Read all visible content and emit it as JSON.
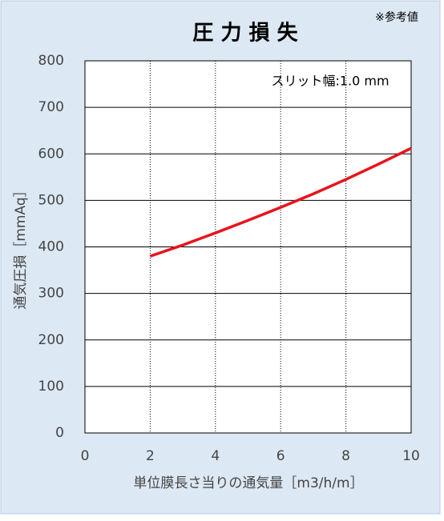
{
  "chart_data": {
    "type": "line",
    "title": "圧 力 損 失",
    "note": "※参考値",
    "annotation": "スリット幅:1.0 mm",
    "x_label": "単位膜長さ当りの通気量［m3/h/m］",
    "y_label": "通気圧損［mmAq］",
    "x": [
      2,
      3,
      4,
      5,
      6,
      7,
      8,
      9,
      10
    ],
    "series": [
      {
        "name": "圧力損失",
        "color": "#e8141b",
        "values": [
          380,
          404,
          430,
          457,
          485,
          514,
          545,
          578,
          612
        ]
      }
    ],
    "xlim": [
      0,
      10
    ],
    "xticks": [
      0,
      2,
      4,
      6,
      8,
      10
    ],
    "ylim": [
      0,
      800
    ],
    "yticks": [
      0,
      100,
      200,
      300,
      400,
      500,
      600,
      700,
      800
    ],
    "grid": true
  }
}
